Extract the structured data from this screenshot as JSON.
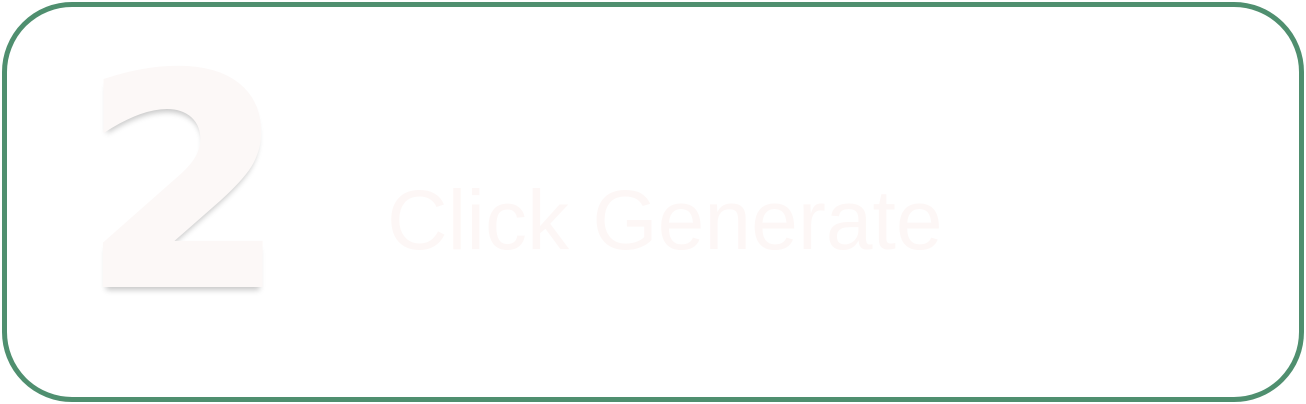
{
  "step": {
    "number": "2",
    "label": "Click Generate"
  },
  "colors": {
    "border": "#4f8f6f",
    "background": "#ffffff",
    "text": "#fdf7f6"
  }
}
